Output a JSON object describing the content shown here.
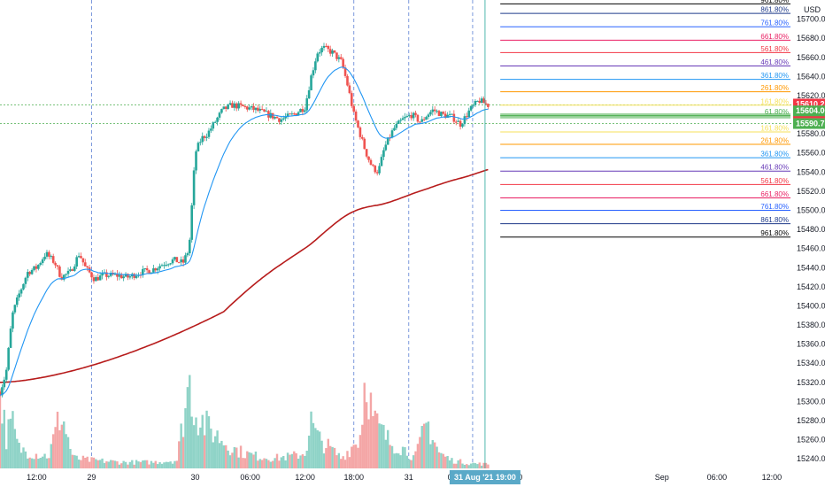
{
  "chart_data": {
    "type": "candlestick",
    "currency": "USD",
    "y_ticks": [
      15700,
      15680,
      15660,
      15640,
      15620,
      15600,
      15580,
      15560,
      15540,
      15520,
      15500,
      15480,
      15460,
      15440,
      15420,
      15400,
      15380,
      15360,
      15340,
      15320,
      15300,
      15280,
      15260,
      15240
    ],
    "y_tick_labels": [
      "15700.00",
      "15680.00",
      "15660.00",
      "15640.00",
      "15620.00",
      "15600.00",
      "15580.00",
      "15560.00",
      "15540.00",
      "15520.00",
      "15500.00",
      "15480.00",
      "15460.00",
      "15440.00",
      "15420.00",
      "15400.00",
      "15380.00",
      "15360.00",
      "15340.00",
      "15320.00",
      "15300.00",
      "15280.00",
      "15260.00",
      "15240.00"
    ],
    "ylim": [
      15230,
      15720
    ],
    "x_ticks": [
      {
        "label": "12:00",
        "t": 0.06
      },
      {
        "label": "29",
        "t": 0.15
      },
      {
        "label": "30",
        "t": 0.32
      },
      {
        "label": "06:00",
        "t": 0.41
      },
      {
        "label": "12:00",
        "t": 0.5
      },
      {
        "label": "18:00",
        "t": 0.58
      },
      {
        "label": "31",
        "t": 0.67
      },
      {
        "label": "06:00",
        "t": 0.75
      },
      {
        "label": "12:00",
        "t": 0.84
      },
      {
        "label": "Sep",
        "t": 1.085
      },
      {
        "label": "06:00",
        "t": 1.175
      },
      {
        "label": "12:00",
        "t": 1.265
      }
    ],
    "crosshair_label": "31 Aug '21   19:00",
    "fib_levels": [
      {
        "label": "961.80%",
        "value": 15716,
        "color": "#000000"
      },
      {
        "label": "861.80%",
        "value": 15706,
        "color": "#1e3a8a"
      },
      {
        "label": "761.80%",
        "value": 15692,
        "color": "#2962ff"
      },
      {
        "label": "661.80%",
        "value": 15678,
        "color": "#e91e63"
      },
      {
        "label": "561.80%",
        "value": 15665,
        "color": "#f23645"
      },
      {
        "label": "461.80%",
        "value": 15651,
        "color": "#673ab7"
      },
      {
        "label": "361.80%",
        "value": 15637,
        "color": "#2196f3"
      },
      {
        "label": "261.80%",
        "value": 15624,
        "color": "#ff9800"
      },
      {
        "label": "161.80%",
        "value": 15610,
        "color": "#f7e15a"
      },
      {
        "label": "61.80%",
        "value": 15599,
        "color": "#4caf50"
      },
      {
        "label": "161.80%",
        "value": 15582,
        "color": "#f7e15a"
      },
      {
        "label": "261.80%",
        "value": 15569,
        "color": "#ff9800"
      },
      {
        "label": "361.80%",
        "value": 15555,
        "color": "#2196f3"
      },
      {
        "label": "461.80%",
        "value": 15541,
        "color": "#673ab7"
      },
      {
        "label": "561.80%",
        "value": 15527,
        "color": "#f23645"
      },
      {
        "label": "661.80%",
        "value": 15513,
        "color": "#e91e63"
      },
      {
        "label": "761.80%",
        "value": 15500,
        "color": "#2962ff"
      },
      {
        "label": "861.80%",
        "value": 15486,
        "color": "#1e3a8a"
      },
      {
        "label": "961.80%",
        "value": 15472,
        "color": "#000000"
      }
    ],
    "price_tags": [
      {
        "value": 15610.25,
        "label": "15610.25",
        "sub": "11:35",
        "color": "#f23645"
      },
      {
        "value": 15604.0,
        "label": "15604.00",
        "color": "#4caf50"
      },
      {
        "value": 15590.75,
        "label": "15590.75",
        "color": "#4caf50"
      }
    ],
    "dotted_levels": [
      15610.25,
      15590.75
    ],
    "close_path": [
      [
        0,
        15310
      ],
      [
        0.01,
        15330
      ],
      [
        0.02,
        15390
      ],
      [
        0.03,
        15410
      ],
      [
        0.045,
        15435
      ],
      [
        0.06,
        15440
      ],
      [
        0.075,
        15455
      ],
      [
        0.09,
        15445
      ],
      [
        0.1,
        15430
      ],
      [
        0.115,
        15435
      ],
      [
        0.13,
        15455
      ],
      [
        0.14,
        15440
      ],
      [
        0.155,
        15428
      ],
      [
        0.17,
        15432
      ],
      [
        0.19,
        15432
      ],
      [
        0.21,
        15430
      ],
      [
        0.23,
        15435
      ],
      [
        0.25,
        15438
      ],
      [
        0.27,
        15445
      ],
      [
        0.285,
        15448
      ],
      [
        0.3,
        15445
      ],
      [
        0.31,
        15460
      ],
      [
        0.32,
        15560
      ],
      [
        0.33,
        15575
      ],
      [
        0.34,
        15580
      ],
      [
        0.35,
        15590
      ],
      [
        0.365,
        15605
      ],
      [
        0.38,
        15610
      ],
      [
        0.4,
        15608
      ],
      [
        0.42,
        15605
      ],
      [
        0.44,
        15600
      ],
      [
        0.46,
        15595
      ],
      [
        0.48,
        15600
      ],
      [
        0.5,
        15608
      ],
      [
        0.51,
        15640
      ],
      [
        0.52,
        15665
      ],
      [
        0.53,
        15670
      ],
      [
        0.545,
        15665
      ],
      [
        0.56,
        15655
      ],
      [
        0.57,
        15630
      ],
      [
        0.58,
        15600
      ],
      [
        0.59,
        15580
      ],
      [
        0.6,
        15560
      ],
      [
        0.61,
        15545
      ],
      [
        0.62,
        15540
      ],
      [
        0.63,
        15565
      ],
      [
        0.645,
        15585
      ],
      [
        0.66,
        15595
      ],
      [
        0.675,
        15600
      ],
      [
        0.69,
        15592
      ],
      [
        0.7,
        15600
      ],
      [
        0.71,
        15605
      ],
      [
        0.725,
        15600
      ],
      [
        0.74,
        15598
      ],
      [
        0.755,
        15590
      ],
      [
        0.77,
        15605
      ],
      [
        0.785,
        15615
      ],
      [
        0.8,
        15610
      ]
    ],
    "volume_profile": [
      [
        0,
        80
      ],
      [
        0.01,
        30
      ],
      [
        0.02,
        45
      ],
      [
        0.03,
        20
      ],
      [
        0.05,
        15
      ],
      [
        0.08,
        12
      ],
      [
        0.1,
        55
      ],
      [
        0.12,
        10
      ],
      [
        0.15,
        8
      ],
      [
        0.2,
        6
      ],
      [
        0.25,
        6
      ],
      [
        0.29,
        8
      ],
      [
        0.31,
        85
      ],
      [
        0.32,
        55
      ],
      [
        0.34,
        40
      ],
      [
        0.36,
        30
      ],
      [
        0.38,
        20
      ],
      [
        0.4,
        15
      ],
      [
        0.42,
        12
      ],
      [
        0.45,
        10
      ],
      [
        0.48,
        12
      ],
      [
        0.5,
        15
      ],
      [
        0.51,
        45
      ],
      [
        0.52,
        30
      ],
      [
        0.54,
        20
      ],
      [
        0.56,
        10
      ],
      [
        0.59,
        30
      ],
      [
        0.6,
        100
      ],
      [
        0.61,
        50
      ],
      [
        0.62,
        40
      ],
      [
        0.64,
        25
      ],
      [
        0.66,
        20
      ],
      [
        0.68,
        10
      ],
      [
        0.7,
        45
      ],
      [
        0.72,
        15
      ],
      [
        0.74,
        8
      ],
      [
        0.77,
        5
      ],
      [
        0.8,
        4
      ]
    ],
    "colors": {
      "up": "#26a69a",
      "down": "#ef5350",
      "vol_up": "#8fd3c7",
      "vol_down": "#f4a6a6",
      "ema_fast": "#2196f3",
      "ema_slow": "#b71c1c",
      "grid_dash": "#5b7fd4",
      "crosshair": "#26a69a",
      "axis_tag": "#5aa9c8"
    }
  }
}
